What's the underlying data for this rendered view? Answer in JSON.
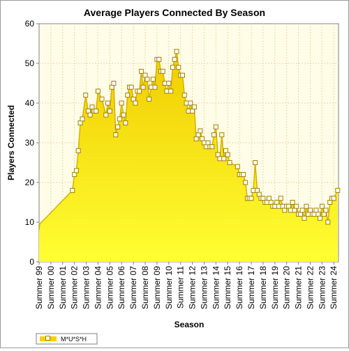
{
  "chart_data": {
    "type": "area",
    "title": "Average Players Connected By Season",
    "xlabel": "Season",
    "ylabel": "Players Connected",
    "ylim": [
      0,
      60
    ],
    "yticks": [
      0,
      10,
      20,
      30,
      40,
      50,
      60
    ],
    "xlim": [
      0,
      25.4
    ],
    "xticks": [
      "Summer 99",
      "Summer 00",
      "Summer 01",
      "Summer 02",
      "Summer 03",
      "Summer 04",
      "Summer 05",
      "Summer 06",
      "Summer 07",
      "Summer 08",
      "Summer 09",
      "Summer 10",
      "Summer 11",
      "Summer 12",
      "Summer 13",
      "Summer 14",
      "Summer 15",
      "Summer 16",
      "Summer 17",
      "Summer 18",
      "Summer 19",
      "Summer 20",
      "Summer 21",
      "Summer 22",
      "Summer 23",
      "Summer 24"
    ],
    "legend_position": "bottom-left",
    "grid": true,
    "colors": {
      "fill_top": "#f0cc00",
      "fill_bottom": "#ffff33",
      "line": "#d4b000",
      "marker_fill": "#fffff0",
      "marker_stroke": "#a08000",
      "plot_bg": "#fffde8",
      "grid": "#e8d8a8"
    },
    "series": [
      {
        "name": "M*U*S*H",
        "marked_from_index": 2,
        "points": [
          [
            0.0,
            8.0
          ],
          [
            0.05,
            9.5
          ],
          [
            2.83,
            18.0
          ],
          [
            3.0,
            22.0
          ],
          [
            3.17,
            23.0
          ],
          [
            3.33,
            28.0
          ],
          [
            3.5,
            35.0
          ],
          [
            3.67,
            36.0
          ],
          [
            3.95,
            42.0
          ],
          [
            4.17,
            38.0
          ],
          [
            4.33,
            37.0
          ],
          [
            4.5,
            39.0
          ],
          [
            4.67,
            38.0
          ],
          [
            4.83,
            38.0
          ],
          [
            5.0,
            43.0
          ],
          [
            5.33,
            41.0
          ],
          [
            5.67,
            37.0
          ],
          [
            5.83,
            40.0
          ],
          [
            6.0,
            38.0
          ],
          [
            6.17,
            44.0
          ],
          [
            6.33,
            45.0
          ],
          [
            6.5,
            32.0
          ],
          [
            6.67,
            34.0
          ],
          [
            6.83,
            36.0
          ],
          [
            7.0,
            40.0
          ],
          [
            7.17,
            37.0
          ],
          [
            7.33,
            35.0
          ],
          [
            7.5,
            42.0
          ],
          [
            7.67,
            44.0
          ],
          [
            7.83,
            44.0
          ],
          [
            8.0,
            41.0
          ],
          [
            8.17,
            40.0
          ],
          [
            8.33,
            43.0
          ],
          [
            8.5,
            43.0
          ],
          [
            8.67,
            48.0
          ],
          [
            8.83,
            44.0
          ],
          [
            9.0,
            47.0
          ],
          [
            9.17,
            46.0
          ],
          [
            9.33,
            41.0
          ],
          [
            9.5,
            44.0
          ],
          [
            9.67,
            46.0
          ],
          [
            9.83,
            44.0
          ],
          [
            10.0,
            51.0
          ],
          [
            10.17,
            51.0
          ],
          [
            10.33,
            48.0
          ],
          [
            10.5,
            48.0
          ],
          [
            10.67,
            45.0
          ],
          [
            10.83,
            43.0
          ],
          [
            11.0,
            45.0
          ],
          [
            11.17,
            43.0
          ],
          [
            11.33,
            49.0
          ],
          [
            11.5,
            51.0
          ],
          [
            11.67,
            53.0
          ],
          [
            11.83,
            49.0
          ],
          [
            12.0,
            47.0
          ],
          [
            12.17,
            47.0
          ],
          [
            12.33,
            42.0
          ],
          [
            12.5,
            40.0
          ],
          [
            12.67,
            38.0
          ],
          [
            12.83,
            40.0
          ],
          [
            13.0,
            38.0
          ],
          [
            13.17,
            39.0
          ],
          [
            13.33,
            31.0
          ],
          [
            13.5,
            32.0
          ],
          [
            13.67,
            33.0
          ],
          [
            13.83,
            31.0
          ],
          [
            14.0,
            30.0
          ],
          [
            14.17,
            29.0
          ],
          [
            14.33,
            30.0
          ],
          [
            14.5,
            29.0
          ],
          [
            14.67,
            29.0
          ],
          [
            14.83,
            32.0
          ],
          [
            15.0,
            34.0
          ],
          [
            15.17,
            27.0
          ],
          [
            15.33,
            26.0
          ],
          [
            15.5,
            32.0
          ],
          [
            15.67,
            26.0
          ],
          [
            15.83,
            28.0
          ],
          [
            16.0,
            27.0
          ],
          [
            16.17,
            25.0
          ],
          [
            16.83,
            24.0
          ],
          [
            17.0,
            22.0
          ],
          [
            17.17,
            22.0
          ],
          [
            17.33,
            22.0
          ],
          [
            17.5,
            20.0
          ],
          [
            17.67,
            16.0
          ],
          [
            17.83,
            16.0
          ],
          [
            18.0,
            16.0
          ],
          [
            18.17,
            18.0
          ],
          [
            18.33,
            25.0
          ],
          [
            18.5,
            18.0
          ],
          [
            18.67,
            17.0
          ],
          [
            18.83,
            16.0
          ],
          [
            19.0,
            16.0
          ],
          [
            19.17,
            15.0
          ],
          [
            19.33,
            15.0
          ],
          [
            19.5,
            16.0
          ],
          [
            19.67,
            15.0
          ],
          [
            19.83,
            14.0
          ],
          [
            20.0,
            14.0
          ],
          [
            20.17,
            15.0
          ],
          [
            20.33,
            14.0
          ],
          [
            20.5,
            16.0
          ],
          [
            20.67,
            14.0
          ],
          [
            20.83,
            13.0
          ],
          [
            21.0,
            14.0
          ],
          [
            21.17,
            14.0
          ],
          [
            21.33,
            13.0
          ],
          [
            21.5,
            15.0
          ],
          [
            21.67,
            13.0
          ],
          [
            21.83,
            14.0
          ],
          [
            22.0,
            12.0
          ],
          [
            22.17,
            12.0
          ],
          [
            22.33,
            13.0
          ],
          [
            22.5,
            11.0
          ],
          [
            22.67,
            14.0
          ],
          [
            22.83,
            12.0
          ],
          [
            23.0,
            13.0
          ],
          [
            23.17,
            12.0
          ],
          [
            23.33,
            12.0
          ],
          [
            23.5,
            13.0
          ],
          [
            23.67,
            12.0
          ],
          [
            23.83,
            11.0
          ],
          [
            24.0,
            14.0
          ],
          [
            24.17,
            12.0
          ],
          [
            24.33,
            13.0
          ],
          [
            24.5,
            10.0
          ],
          [
            24.67,
            15.0
          ],
          [
            24.83,
            16.0
          ],
          [
            25.0,
            16.0
          ],
          [
            25.33,
            18.0
          ]
        ]
      }
    ]
  }
}
